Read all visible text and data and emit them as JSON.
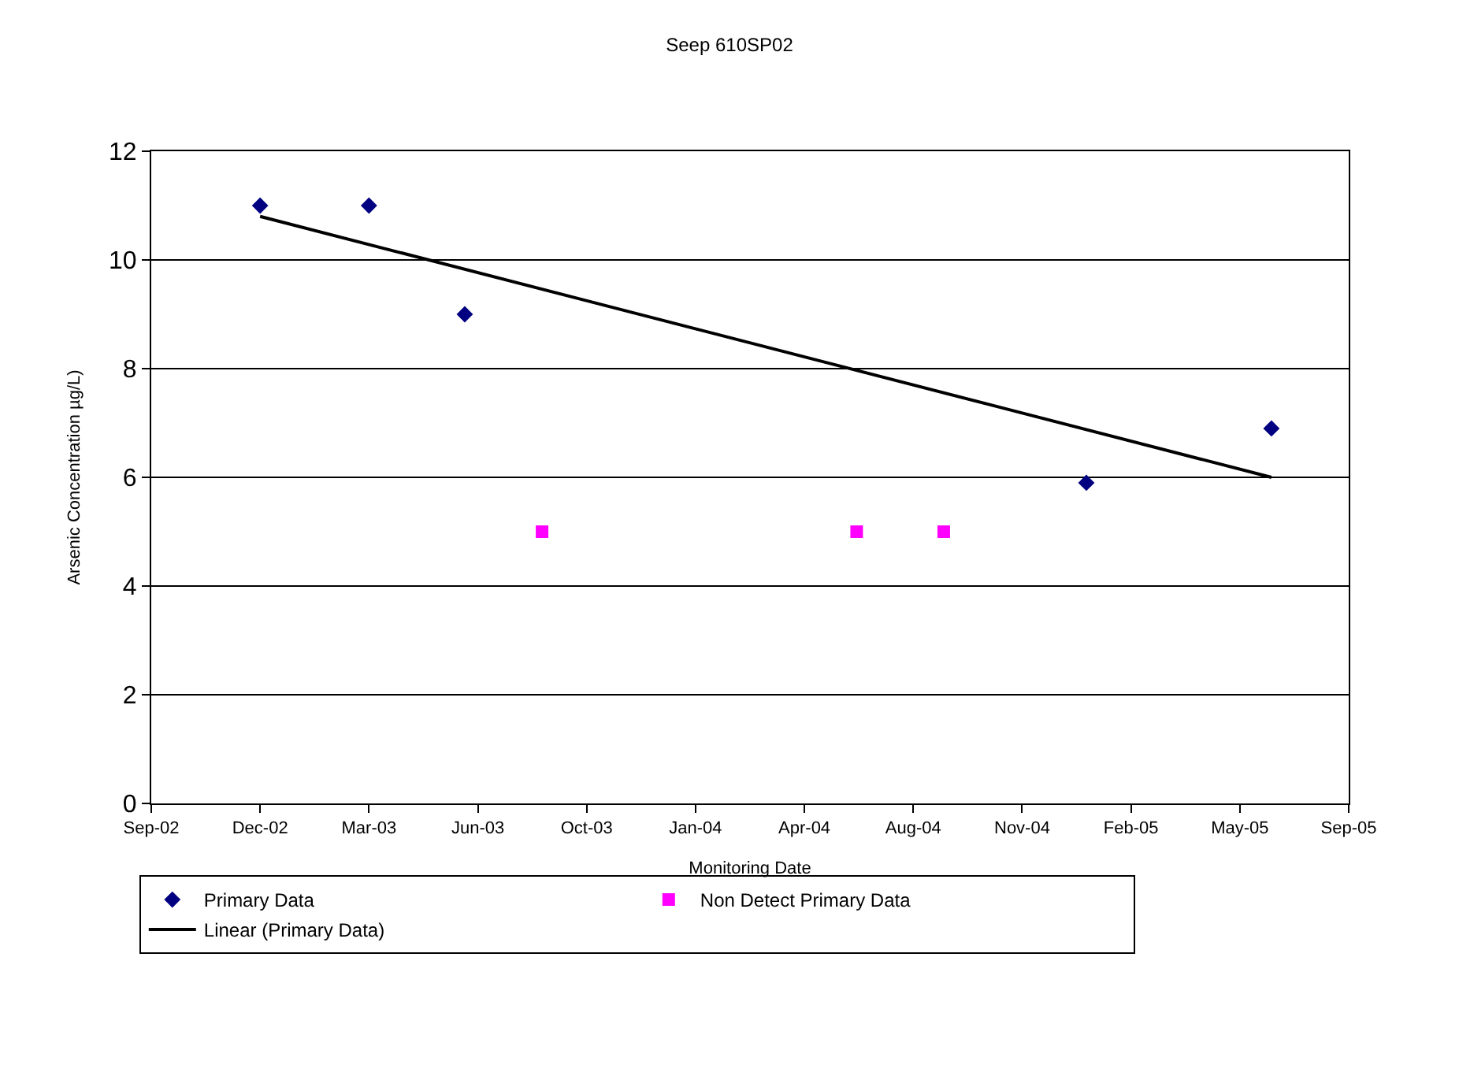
{
  "chart_data": {
    "type": "scatter",
    "title": "Seep 610SP02",
    "xlabel": "Monitoring Date",
    "ylabel": "Arsenic Concentration µg/L)",
    "series": [
      {
        "name": "Primary Data",
        "color": "#000080",
        "marker": "diamond",
        "x": [
          "2002-12-11",
          "2003-03-21",
          "2003-06-17",
          "2005-01-08",
          "2005-06-27"
        ],
        "values": [
          11,
          11,
          9,
          5.9,
          6.9
        ]
      },
      {
        "name": "Non Detect Primary Data",
        "color": "#ff00ff",
        "marker": "square",
        "x": [
          "2003-08-27",
          "2004-06-11",
          "2004-08-30"
        ],
        "values": [
          5,
          5,
          5
        ]
      },
      {
        "name": "Linear (Primary Data)",
        "type": "line",
        "color": "#000000",
        "marker": "none",
        "line_style": "solid",
        "x": [
          "2002-12-11",
          "2005-06-27"
        ],
        "values": [
          10.8,
          6.0
        ]
      }
    ],
    "xlim": [
      "2002-09-02",
      "2005-09-06"
    ],
    "xticks": [
      {
        "value": "2002-09-02",
        "label": "Sep-02"
      },
      {
        "value": "2002-12-11",
        "label": "Dec-02"
      },
      {
        "value": "2003-03-21",
        "label": "Mar-03"
      },
      {
        "value": "2003-06-29",
        "label": "Jun-03"
      },
      {
        "value": "2003-10-07",
        "label": "Oct-03"
      },
      {
        "value": "2004-01-15",
        "label": "Jan-04"
      },
      {
        "value": "2004-04-24",
        "label": "Apr-04"
      },
      {
        "value": "2004-08-02",
        "label": "Aug-04"
      },
      {
        "value": "2004-11-10",
        "label": "Nov-04"
      },
      {
        "value": "2005-02-18",
        "label": "Feb-05"
      },
      {
        "value": "2005-05-29",
        "label": "May-05"
      },
      {
        "value": "2005-09-06",
        "label": "Sep-05"
      }
    ],
    "ylim": [
      0,
      12
    ],
    "yticks": [
      0,
      2,
      4,
      6,
      8,
      10,
      12
    ],
    "grid": "y",
    "legend": "bottom"
  }
}
